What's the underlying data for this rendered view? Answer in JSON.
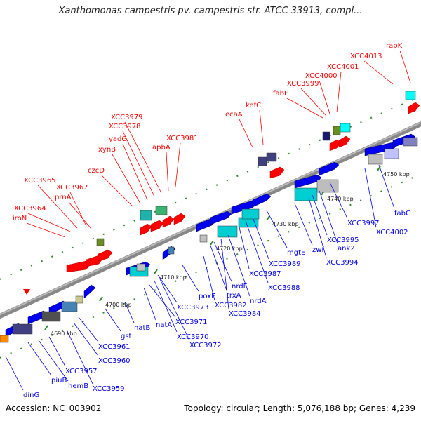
{
  "title": "Xanthomonas campestris pv. campestris str. ATCC 33913, compl...",
  "footer": {
    "accession": "Accession: NC_003902",
    "summary": "Topology: circular; Length: 5,076,188 bp; Genes: 4,239"
  },
  "colors": {
    "forward": "#ff0000",
    "reverse": "#0000ee",
    "backbone": "#8c8c8c"
  },
  "scale_labels": [
    "4690 kbp",
    "4700 kbp",
    "4710 kbp",
    "4720 kbp",
    "4730 kbp",
    "4740 kbp",
    "4750 kbp"
  ],
  "forward_genes": [
    "XCC3964",
    "iroN",
    "XCC3965",
    "XCC3967",
    "prnA",
    "czcD",
    "xynB",
    "yadG",
    "XCC3978",
    "XCC3979",
    "apbA",
    "XCC3981",
    "ecaA",
    "kefC",
    "fabF",
    "XCC3999",
    "XCC4000",
    "XCC4001",
    "XCC4013",
    "rapK"
  ],
  "reverse_genes": [
    "dinG",
    "piuB",
    "hemB",
    "XCC3957",
    "XCC3959",
    "XCC3960",
    "XCC3961",
    "gst",
    "natB",
    "natA",
    "XCC3971",
    "XCC3970",
    "XCC3972",
    "XCC3973",
    "poxF",
    "XCC3982",
    "trxA",
    "nrdF",
    "XCC3984",
    "nrdA",
    "XCC3987",
    "XCC3988",
    "XCC3989",
    "mgtE",
    "zwf",
    "XCC3994",
    "XCC3995",
    "ank2",
    "XCC3997",
    "XCC4002",
    "fabG"
  ]
}
